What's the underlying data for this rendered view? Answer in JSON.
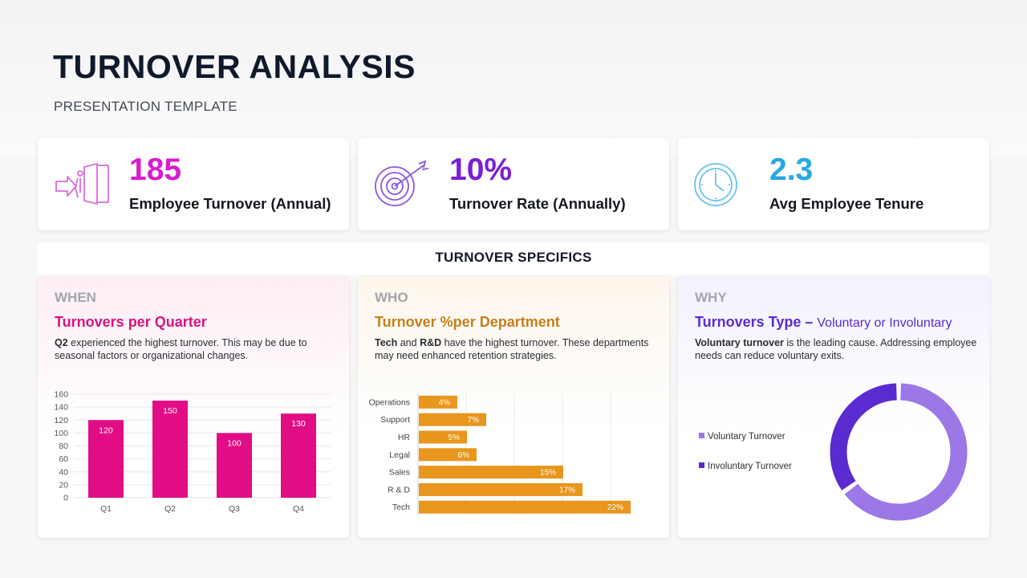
{
  "header": {
    "title": "TURNOVER ANALYSIS",
    "subtitle": "PRESENTATION TEMPLATE"
  },
  "kpis": [
    {
      "value": "185",
      "label": "Employee Turnover (Annual)",
      "color": "#d81ccf",
      "icon": "exit-door-icon"
    },
    {
      "value": "10%",
      "label": "Turnover Rate (Annually)",
      "color": "#7a1fd6",
      "icon": "target-icon"
    },
    {
      "value": "2.3",
      "label": "Avg Employee Tenure",
      "color": "#26a8e3",
      "icon": "clock-icon"
    }
  ],
  "section_title": "TURNOVER SPECIFICS",
  "panels": {
    "when": {
      "tag": "WHEN",
      "heading": "Turnovers per Quarter",
      "heading_color": "#d6147f",
      "desc_bold": "Q2",
      "desc_rest": " experienced the highest turnover. This may be due to seasonal factors or organizational changes."
    },
    "who": {
      "tag": "WHO",
      "heading": "Turnover %per Department",
      "heading_color": "#c4801b",
      "desc_bold1": "Tech",
      "desc_mid": " and ",
      "desc_bold2": "R&D",
      "desc_rest": " have the highest turnover. These departments may need enhanced retention strategies."
    },
    "why": {
      "tag": "WHY",
      "heading": "Turnovers Type – ",
      "heading_light": "Voluntary or Involuntary",
      "heading_color": "#5a2bd1",
      "desc_bold": "Voluntary turnover",
      "desc_rest": " is the leading cause. Addressing employee needs can reduce voluntary exits."
    }
  },
  "chart_data": [
    {
      "type": "bar",
      "categories": [
        "Q1",
        "Q2",
        "Q3",
        "Q4"
      ],
      "values": [
        120,
        150,
        100,
        130
      ],
      "ylim": [
        0,
        160
      ],
      "yticks": [
        0,
        20,
        40,
        60,
        80,
        100,
        120,
        140,
        160
      ],
      "color": "#e20d86",
      "grid": true
    },
    {
      "type": "bar",
      "orientation": "horizontal",
      "categories": [
        "Operations",
        "Support",
        "HR",
        "Legal",
        "Sales",
        "R & D",
        "Tech"
      ],
      "values": [
        4,
        7,
        5,
        6,
        15,
        17,
        22
      ],
      "value_labels": [
        "4%",
        "7%",
        "5%",
        "6%",
        "15%",
        "17%",
        "22%"
      ],
      "xlim": [
        0,
        25
      ],
      "color": "#e8961c"
    },
    {
      "type": "pie",
      "variant": "donut",
      "labels": [
        "Voluntary Turnover",
        "Involuntary Turnover"
      ],
      "values": [
        65,
        35
      ],
      "colors": [
        "#9b78e6",
        "#5a2bd1"
      ]
    }
  ]
}
